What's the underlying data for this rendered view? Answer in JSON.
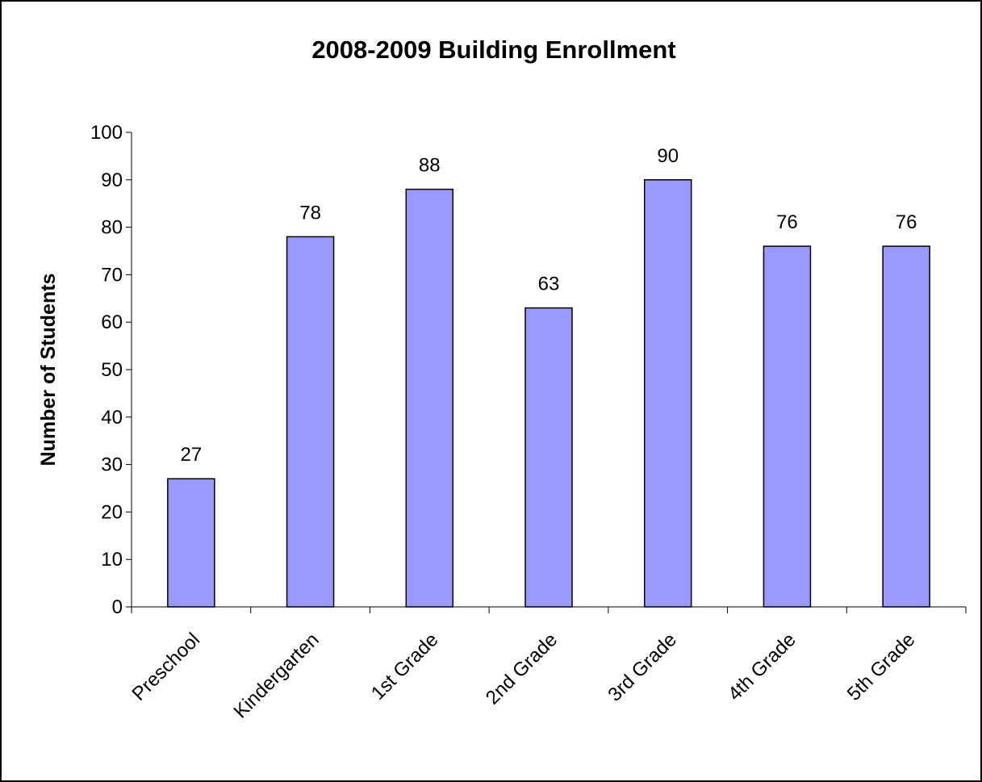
{
  "chart_data": {
    "type": "bar",
    "title": "2008-2009 Building Enrollment",
    "xlabel": "",
    "ylabel": "Number of Students",
    "categories": [
      "Preschool",
      "Kindergarten",
      "1st Grade",
      "2nd Grade",
      "3rd Grade",
      "4th Grade",
      "5th Grade"
    ],
    "values": [
      27,
      78,
      88,
      63,
      90,
      76,
      76
    ],
    "ylim": [
      0,
      100
    ],
    "yticks": [
      0,
      10,
      20,
      30,
      40,
      50,
      60,
      70,
      80,
      90,
      100
    ],
    "data_labels": true,
    "grid": false,
    "legend": "none",
    "bar_color": "#9999ff",
    "bar_edge_color": "#000000"
  }
}
